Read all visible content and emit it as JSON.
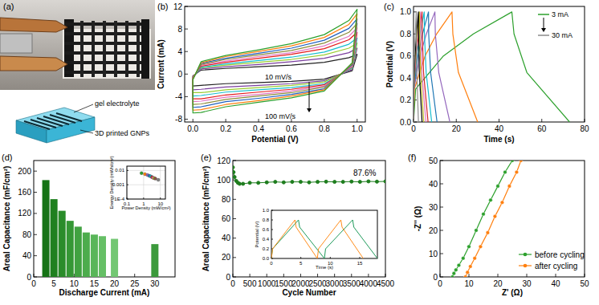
{
  "panel_a": {
    "title": "(a)",
    "annotations": [
      "gel electrolyte",
      "3D printed GNPs"
    ]
  },
  "chart_data": [
    {
      "type": "line",
      "title": "(b)",
      "xlabel": "Potential (V)",
      "ylabel": "Current (mA)",
      "xlim": [
        -0.05,
        1.05
      ],
      "ylim": [
        -8.5,
        12
      ],
      "xticks": [
        {
          "value": 0,
          "label": "0.0"
        },
        0.2,
        0.4,
        0.6,
        0.8,
        {
          "value": 1,
          "label": "1.0"
        }
      ],
      "yticks": [
        -8,
        -4,
        0,
        4,
        8,
        12
      ],
      "annotations": [
        "10 mV/s",
        "100 mV/s"
      ],
      "x": [
        0,
        0.05,
        0.2,
        0.4,
        0.6,
        0.8,
        0.95,
        1,
        0.97,
        0.8,
        0.6,
        0.4,
        0.2,
        0.05,
        0
      ],
      "series": [
        {
          "color": "#222222",
          "values": [
            -0.3,
            0.7,
            1.0,
            1.3,
            1.6,
            2.1,
            2.9,
            3.5,
            0.6,
            -0.9,
            -1.3,
            -1.5,
            -1.7,
            -2.0,
            -2.1
          ]
        },
        {
          "color": "#7b3f9e",
          "values": [
            -0.4,
            0.9,
            1.3,
            1.7,
            2.2,
            2.8,
            3.8,
            4.6,
            0.8,
            -1.2,
            -1.7,
            -2.0,
            -2.3,
            -2.7,
            -2.8
          ]
        },
        {
          "color": "#9acd32",
          "values": [
            -0.5,
            1.1,
            1.6,
            2.1,
            2.6,
            3.4,
            4.6,
            5.5,
            1.0,
            -1.4,
            -2.0,
            -2.4,
            -2.8,
            -3.3,
            -3.3
          ]
        },
        {
          "color": "#17becf",
          "values": [
            -0.6,
            1.2,
            1.8,
            2.4,
            3.0,
            3.9,
            5.3,
            6.4,
            1.1,
            -1.7,
            -2.4,
            -2.8,
            -3.2,
            -3.8,
            -3.9
          ]
        },
        {
          "color": "#e41a1c",
          "values": [
            -0.6,
            1.4,
            2.1,
            2.8,
            3.5,
            4.5,
            6.1,
            7.4,
            1.3,
            -1.9,
            -2.7,
            -3.2,
            -3.7,
            -4.4,
            -4.4
          ]
        },
        {
          "color": "#e377c2",
          "values": [
            -0.7,
            1.6,
            2.3,
            3.1,
            3.8,
            5.0,
            6.7,
            8.2,
            1.4,
            -2.1,
            -3.0,
            -3.6,
            -4.1,
            -4.8,
            -4.9
          ]
        },
        {
          "color": "#8c8c3c",
          "values": [
            -0.8,
            1.7,
            2.6,
            3.4,
            4.2,
            5.5,
            7.4,
            9.0,
            1.6,
            -2.3,
            -3.3,
            -3.9,
            -4.5,
            -5.3,
            -5.4
          ]
        },
        {
          "color": "#1f5fbf",
          "values": [
            -0.9,
            1.9,
            2.8,
            3.7,
            4.6,
            6.0,
            8.1,
            9.8,
            1.7,
            -2.6,
            -3.6,
            -4.3,
            -4.9,
            -5.8,
            -5.9
          ]
        },
        {
          "color": "#ff7f0e",
          "values": [
            -0.9,
            2.0,
            3.1,
            4.0,
            5.0,
            6.5,
            8.8,
            10.7,
            1.9,
            -2.8,
            -3.9,
            -4.7,
            -5.4,
            -6.3,
            -6.4
          ]
        },
        {
          "color": "#2ca02c",
          "values": [
            -1,
            2.2,
            3.3,
            4.3,
            5.4,
            7.0,
            9.5,
            11.5,
            2.0,
            -3.0,
            -4.2,
            -5.0,
            -5.8,
            -6.8,
            -6.9
          ]
        }
      ]
    },
    {
      "type": "line",
      "title": "(c)",
      "xlabel": "Time (s)",
      "ylabel": "Potential (V)",
      "xlim": [
        0,
        80
      ],
      "ylim": [
        0,
        1.05
      ],
      "xticks": [
        0,
        20,
        40,
        60,
        80
      ],
      "yticks": [
        {
          "value": 0,
          "label": "0.0"
        },
        0.2,
        0.4,
        0.6,
        0.8,
        {
          "value": 1,
          "label": "1.0"
        }
      ],
      "annotations": [
        "3 mA",
        "30 mA"
      ],
      "series": [
        {
          "color": "#2ca02c",
          "x": [
            0,
            1,
            14,
            28,
            46,
            47,
            53,
            73
          ],
          "values": [
            0,
            0.3,
            0.6,
            0.8,
            1,
            0.8,
            0.45,
            0
          ]
        },
        {
          "color": "#ff7f0e",
          "x": [
            0,
            0.4,
            5.4,
            10.8,
            18,
            18.4,
            21,
            30
          ],
          "values": [
            0,
            0.3,
            0.6,
            0.8,
            1,
            0.8,
            0.45,
            0
          ]
        },
        {
          "color": "#9467bd",
          "x": [
            0,
            0.2,
            3,
            6,
            10,
            10.2,
            11.8,
            17
          ],
          "values": [
            0,
            0.3,
            0.6,
            0.8,
            1,
            0.8,
            0.45,
            0
          ]
        },
        {
          "color": "#1f77b4",
          "x": [
            0,
            0.1,
            2.1,
            4.2,
            7,
            7.1,
            8,
            11
          ],
          "values": [
            0,
            0.3,
            0.6,
            0.8,
            1,
            0.8,
            0.45,
            0
          ]
        },
        {
          "color": "#17becf",
          "x": [
            0,
            0.1,
            1.5,
            3,
            5,
            5.1,
            5.9,
            8.5
          ],
          "values": [
            0,
            0.3,
            0.6,
            0.8,
            1,
            0.8,
            0.45,
            0
          ]
        },
        {
          "color": "#d62728",
          "x": [
            0,
            0.1,
            1.2,
            2.4,
            4,
            4.1,
            4.7,
            6.8
          ],
          "values": [
            0,
            0.3,
            0.6,
            0.8,
            1,
            0.8,
            0.45,
            0
          ]
        },
        {
          "color": "#e377c2",
          "x": [
            0,
            0.1,
            1,
            2,
            3.3,
            3.4,
            3.9,
            5.8
          ],
          "values": [
            0,
            0.3,
            0.6,
            0.8,
            1,
            0.8,
            0.45,
            0
          ]
        },
        {
          "color": "#bcbd22",
          "x": [
            0,
            0.1,
            0.8,
            1.7,
            2.8,
            2.9,
            3.3,
            4.8
          ],
          "values": [
            0,
            0.3,
            0.6,
            0.8,
            1,
            0.8,
            0.45,
            0
          ]
        },
        {
          "color": "#000000",
          "x": [
            0,
            0.1,
            0.7,
            1.4,
            2.3,
            2.4,
            2.7,
            4
          ],
          "values": [
            0,
            0.3,
            0.6,
            0.8,
            1,
            0.8,
            0.45,
            0
          ]
        },
        {
          "color": "#8c8c8c",
          "x": [
            0,
            0.05,
            0.4,
            0.8,
            1.3,
            1.35,
            1.55,
            2.3
          ],
          "values": [
            0,
            0.3,
            0.6,
            0.8,
            1,
            0.8,
            0.45,
            0
          ]
        }
      ]
    },
    {
      "type": "bar",
      "title": "(d)",
      "xlabel": "Discharge Current (mA)",
      "ylabel": "Areal Capacitance (mF/cm²)",
      "xlim": [
        0,
        35
      ],
      "ylim": [
        0,
        220
      ],
      "xticks": [
        0,
        5,
        10,
        15,
        20,
        25,
        30
      ],
      "yticks": [
        0,
        40,
        80,
        120,
        160,
        200
      ],
      "x": [
        3,
        5,
        7,
        9,
        11,
        13,
        15,
        17,
        20,
        30
      ],
      "values": [
        183,
        147,
        125,
        106,
        95,
        84,
        80,
        77,
        72,
        62
      ],
      "colors": [
        "#167316",
        "#1f801f",
        "#2a8c2a",
        "#359735",
        "#41a241",
        "#4dac4d",
        "#59b659",
        "#66bf66",
        "#73c773",
        "#3c9a3c"
      ]
    },
    {
      "type": "scatter",
      "xlabel": "Power Density (mW/cm²)",
      "ylabel": "Energy Density (mWh/cm²)",
      "log": true,
      "grid": true,
      "marker": "circle",
      "xlim": [
        0.1,
        20
      ],
      "ylim": [
        0.0001,
        0.02
      ],
      "xticks": [
        0.1,
        1,
        10
      ],
      "yticks": [
        {
          "value": 0.0001,
          "label": "1E-4"
        },
        0.001,
        0.01
      ],
      "x": [
        0.75,
        1.2,
        1.7,
        2.2,
        2.7,
        3.2,
        3.7,
        4.2,
        5,
        7.5
      ],
      "values": [
        0.0065,
        0.0055,
        0.0048,
        0.0042,
        0.0038,
        0.0034,
        0.0031,
        0.0029,
        0.0027,
        0.0022
      ],
      "colors": [
        "#2ca02c",
        "#ff7f0e",
        "#9467bd",
        "#1f77b4",
        "#17becf",
        "#d62728",
        "#e377c2",
        "#bcbd22",
        "#8c564b",
        "#7f7f7f"
      ]
    },
    {
      "type": "line",
      "title": "(e)",
      "xlabel": "Cycle Number",
      "ylabel": "Areal Capacitance (mF/cm²)",
      "xlim": [
        0,
        4500
      ],
      "ylim": [
        0,
        120
      ],
      "xticks": [
        0,
        500,
        1000,
        1500,
        2000,
        2500,
        3000,
        3500,
        4000,
        4500
      ],
      "yticks": [
        0,
        20,
        40,
        60,
        80,
        100,
        120
      ],
      "annotations": [
        "87.6%"
      ],
      "x": [
        0,
        20,
        50,
        100,
        150,
        200,
        300,
        500,
        750,
        1000,
        1250,
        1500,
        1750,
        2000,
        2250,
        2500,
        2750,
        3000,
        3250,
        3500,
        3750,
        4000,
        4250,
        4500
      ],
      "series": [
        {
          "color": "#1e7d1e",
          "marker": "circle",
          "line_style": "solid",
          "values": [
            113,
            108,
            103,
            99,
            97,
            96,
            96,
            97,
            97,
            97.5,
            98,
            97.5,
            98,
            98,
            97.5,
            98,
            98.2,
            98,
            98,
            98.3,
            98,
            98.5,
            98.2,
            98.5
          ]
        }
      ]
    },
    {
      "type": "line",
      "xlabel": "Time (s)",
      "ylabel": "Potential (V)",
      "xlim": [
        0,
        18
      ],
      "ylim": [
        0,
        1
      ],
      "xticks": [
        0,
        5,
        10,
        15
      ],
      "yticks": [
        {
          "value": 0,
          "label": "0.0"
        },
        0.2,
        0.4,
        0.6,
        0.8,
        {
          "value": 1,
          "label": "1.0"
        }
      ],
      "series": [
        {
          "color": "#1e9a5a",
          "x": [
            0,
            0.2,
            4.6,
            4.8,
            9,
            9.2,
            13.8,
            14,
            18
          ],
          "values": [
            0,
            0.2,
            0.8,
            0.65,
            0,
            0.2,
            0.8,
            0.65,
            0
          ]
        },
        {
          "color": "#ff8c1a",
          "x": [
            0,
            0.2,
            4,
            4.2,
            7.8,
            8,
            11.8,
            12,
            15.6
          ],
          "values": [
            0,
            0.2,
            0.8,
            0.65,
            0,
            0.2,
            0.8,
            0.65,
            0
          ]
        }
      ]
    },
    {
      "type": "line",
      "title": "(f)",
      "xlabel": "Z' (Ω)",
      "ylabel": "-Z'' (Ω)",
      "xlim": [
        0,
        50
      ],
      "ylim": [
        0,
        50
      ],
      "xticks": [
        0,
        10,
        20,
        30,
        40,
        50
      ],
      "yticks": [
        0,
        10,
        20,
        30,
        40,
        50
      ],
      "legend": "lower right",
      "series": [
        {
          "name": "before cycling",
          "color": "#2ca02c",
          "marker": "circle",
          "line_style": "solid",
          "x": [
            4.3,
            4.8,
            5.5,
            6.5,
            8,
            10,
            12.5,
            15,
            17.5,
            20,
            22.5,
            25
          ],
          "values": [
            0,
            1.5,
            3,
            5,
            8,
            13,
            20,
            27,
            33,
            39,
            45,
            50
          ]
        },
        {
          "name": "after cycling",
          "color": "#ff7f0e",
          "marker": "circle",
          "line_style": "solid",
          "x": [
            8.8,
            9.5,
            10.5,
            12,
            14,
            16.5,
            19,
            21.5,
            24,
            26.5,
            28
          ],
          "values": [
            0,
            2,
            4.5,
            8,
            13,
            19,
            26,
            32,
            39,
            45,
            50
          ]
        }
      ]
    }
  ]
}
